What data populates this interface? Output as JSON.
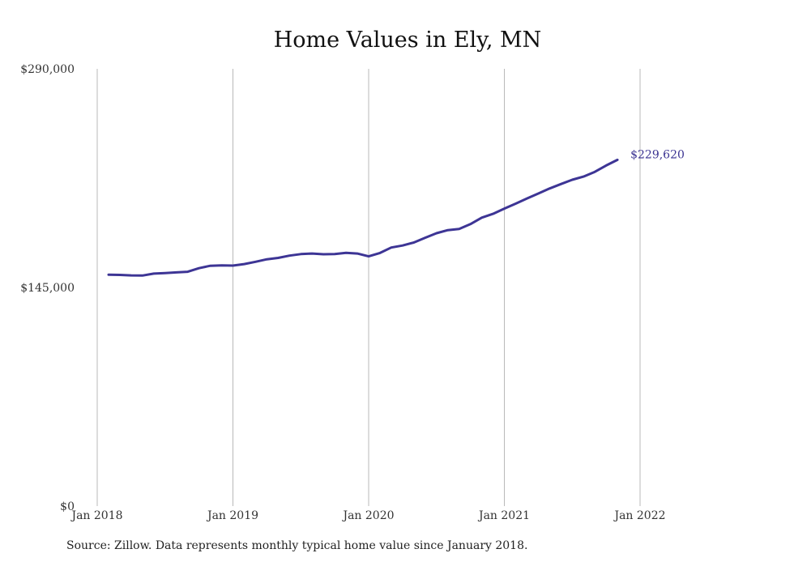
{
  "chart_data": {
    "type": "line",
    "title": "Home Values in Ely, MN",
    "xlabel": "",
    "ylabel": "",
    "ylim": [
      0,
      290000
    ],
    "y_ticks": [
      {
        "value": 0,
        "label": "$0"
      },
      {
        "value": 145000,
        "label": "$145,000"
      },
      {
        "value": 290000,
        "label": "$290,000"
      }
    ],
    "x_ticks": [
      {
        "month": 0,
        "label": "Jan 2018"
      },
      {
        "month": 12,
        "label": "Jan 2019"
      },
      {
        "month": 24,
        "label": "Jan 2020"
      },
      {
        "month": 36,
        "label": "Jan 2021"
      },
      {
        "month": 48,
        "label": "Jan 2022"
      }
    ],
    "grid": "vertical",
    "line_color": "#3d3595",
    "end_label": "$229,620",
    "series": [
      {
        "x_start": "2018-02",
        "values": [
          153500,
          153300,
          153000,
          152900,
          154200,
          154500,
          155000,
          155400,
          157800,
          159400,
          159600,
          159500,
          160500,
          162000,
          163700,
          164600,
          166100,
          167100,
          167500,
          167000,
          167200,
          168000,
          167500,
          165600,
          167900,
          171500,
          172800,
          174800,
          178000,
          181000,
          183000,
          183800,
          187000,
          191300,
          193800,
          197300,
          200600,
          204000,
          207300,
          210600,
          213600,
          216400,
          218500,
          221700,
          225900,
          229620
        ]
      }
    ]
  },
  "footer": {
    "source": "Source: Zillow. Data represents monthly typical home value since January 2018."
  }
}
